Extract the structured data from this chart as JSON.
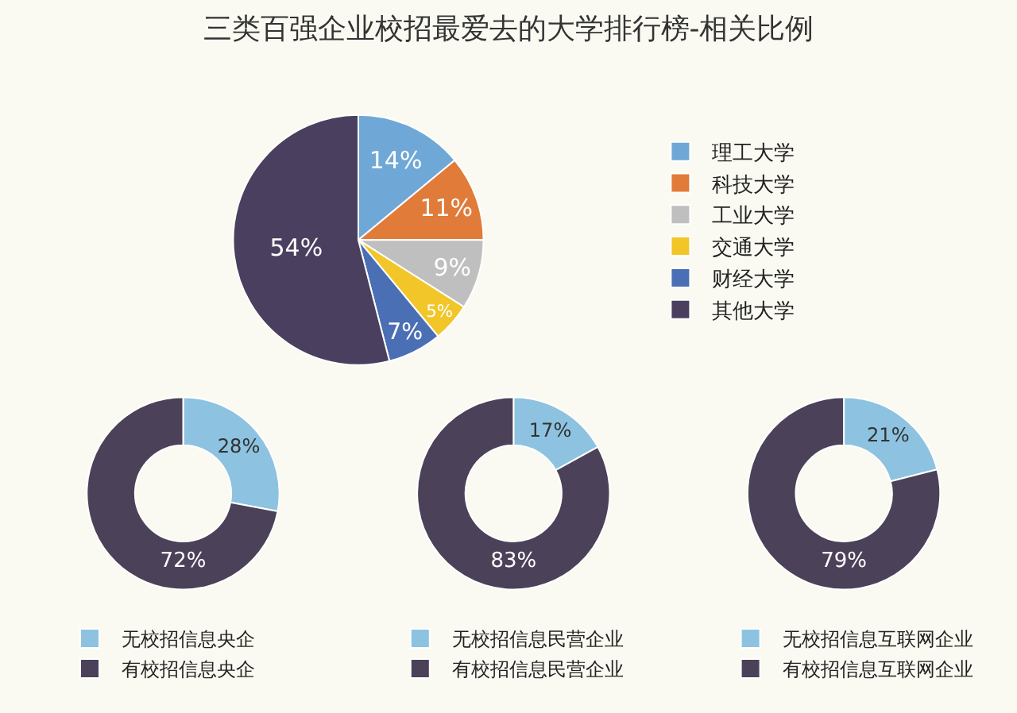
{
  "chart_data": [
    {
      "type": "pie",
      "title": "三类百强企业校招最爱去的大学排行榜-相关比例",
      "categories": [
        "理工大学",
        "科技大学",
        "工业大学",
        "交通大学",
        "财经大学",
        "其他大学"
      ],
      "values": [
        14,
        11,
        9,
        5,
        7,
        54
      ],
      "colors": [
        "#6fa8d6",
        "#e07b39",
        "#bfbfbf",
        "#f2c628",
        "#4a6fb5",
        "#4a3f5e"
      ],
      "value_labels": [
        "14%",
        "11%",
        "9%",
        "5%",
        "7%",
        "54%"
      ],
      "legend": "right"
    },
    {
      "type": "donut",
      "categories": [
        "无校招信息央企",
        "有校招信息央企"
      ],
      "values": [
        28,
        72
      ],
      "colors": [
        "#8dc3e0",
        "#4b4159"
      ],
      "value_labels": [
        "28%",
        "72%"
      ],
      "legend": "bottom"
    },
    {
      "type": "donut",
      "categories": [
        "无校招信息民营企业",
        "有校招信息民营企业"
      ],
      "values": [
        17,
        83
      ],
      "colors": [
        "#8dc3e0",
        "#4b4159"
      ],
      "value_labels": [
        "17%",
        "83%"
      ],
      "legend": "bottom"
    },
    {
      "type": "donut",
      "categories": [
        "无校招信息互联网企业",
        "有校招信息互联网企业"
      ],
      "values": [
        21,
        79
      ],
      "colors": [
        "#8dc3e0",
        "#4b4159"
      ],
      "value_labels": [
        "21%",
        "79%"
      ],
      "legend": "bottom"
    }
  ]
}
